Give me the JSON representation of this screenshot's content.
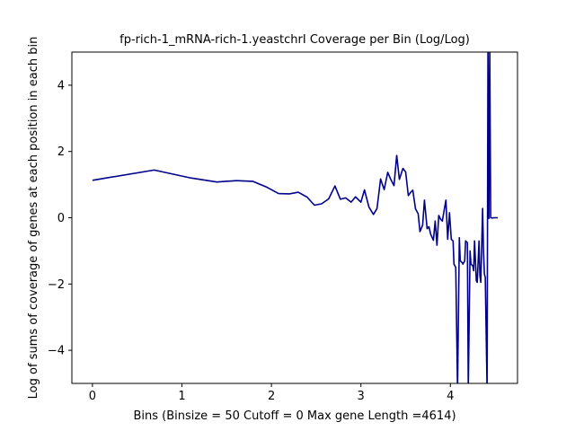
{
  "chart_data": {
    "type": "line",
    "title": "fp-rich-1_mRNA-rich-1.yeastchrI Coverage per Bin (Log/Log)",
    "xlabel": "Bins  (Binsize = 50 Cutoff = 0 Max gene Length =4614)",
    "ylabel": "Log of sums of coverage of genes at each position in each bin",
    "xlim": [
      -0.23,
      4.75
    ],
    "ylim": [
      -5,
      5
    ],
    "xticks": [
      0,
      1,
      2,
      3,
      4
    ],
    "yticks": [
      -4,
      -2,
      0,
      2,
      4
    ],
    "grid": false,
    "line_color": "#00008b",
    "series": [
      {
        "x": [
          0,
          0.69,
          1.1,
          1.39,
          1.61,
          1.79,
          1.95,
          2.08,
          2.2,
          2.3,
          2.4,
          2.48,
          2.56,
          2.64,
          2.71,
          2.77,
          2.83,
          2.89,
          2.94,
          3.0,
          3.04,
          3.09,
          3.14,
          3.18,
          3.22,
          3.26,
          3.3,
          3.33,
          3.37,
          3.4,
          3.43,
          3.47,
          3.5,
          3.53,
          3.56,
          3.58,
          3.61,
          3.64,
          3.66,
          3.69,
          3.71,
          3.74,
          3.76,
          3.78,
          3.81,
          3.83,
          3.85,
          3.87,
          3.89,
          3.91,
          3.93,
          3.95,
          3.97,
          3.99,
          4.01,
          4.03,
          4.04,
          4.06,
          4.08,
          4.1,
          4.11,
          4.13,
          4.14,
          4.16,
          4.17,
          4.19,
          4.2,
          4.22,
          4.23,
          4.25,
          4.26,
          4.27,
          4.29,
          4.3,
          4.32,
          4.33,
          4.34,
          4.36,
          4.37,
          4.38,
          4.39,
          4.41,
          4.42,
          4.43,
          4.44,
          4.45,
          4.47,
          4.48,
          4.49,
          4.5,
          4.51,
          4.52,
          4.53
        ],
        "y": [
          1.13,
          1.44,
          1.2,
          1.08,
          1.12,
          1.1,
          0.92,
          0.73,
          0.72,
          0.77,
          0.62,
          0.38,
          0.42,
          0.57,
          0.96,
          0.56,
          0.6,
          0.47,
          0.63,
          0.47,
          0.84,
          0.32,
          0.1,
          0.28,
          1.17,
          0.85,
          1.37,
          1.18,
          0.97,
          1.88,
          1.16,
          1.49,
          1.38,
          0.67,
          0.78,
          0.83,
          0.27,
          0.12,
          -0.42,
          -0.22,
          0.53,
          -0.33,
          -0.27,
          -0.5,
          -0.68,
          -0.1,
          -0.83,
          0.07,
          -0.04,
          -0.1,
          0.22,
          0.53,
          -0.65,
          0.15,
          -0.65,
          -0.7,
          -1.4,
          -1.5,
          -5.2,
          -0.6,
          -1.3,
          -1.35,
          -1.4,
          -1.3,
          -0.7,
          -0.75,
          -5.2,
          -1.0,
          -1.4,
          -1.45,
          -1.6,
          -0.7,
          -1.9,
          -1.95,
          -0.7,
          -1.75,
          -1.95,
          0.28,
          -1.0,
          -1.7,
          -1.8,
          -5.2,
          5.2,
          -0.02,
          5.2,
          0.0,
          -0.01,
          0.0,
          0.0,
          0.0,
          0.0,
          0.0,
          0.0
        ]
      }
    ]
  }
}
